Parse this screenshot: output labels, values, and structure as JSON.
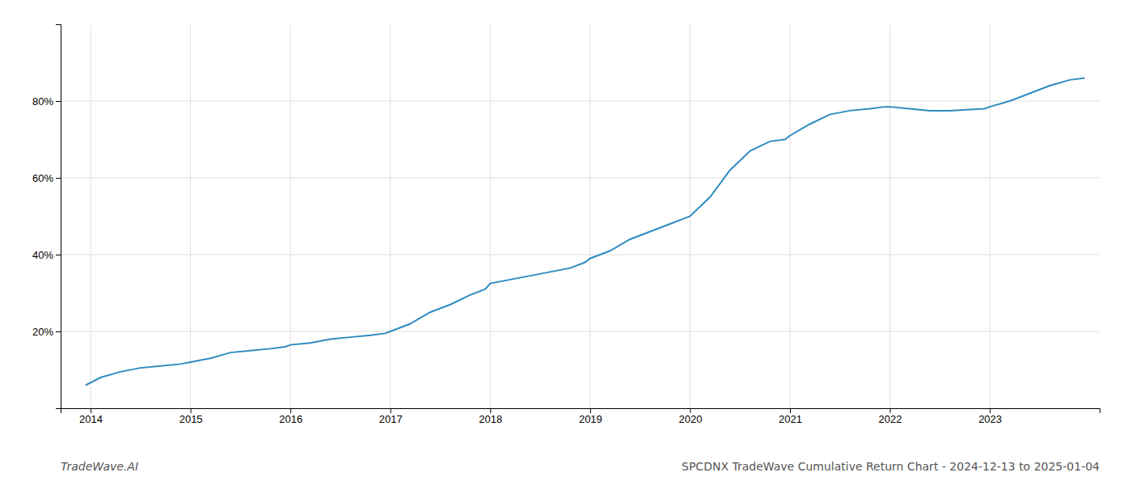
{
  "chart_data": {
    "type": "line",
    "title": "SPCDNX TradeWave Cumulative Return Chart - 2024-12-13 to 2025-01-04",
    "annotations": [
      "TradeWave.AI"
    ],
    "color": "#2e8bc0",
    "grid": true,
    "x": [
      2013.95,
      2014.1,
      2014.3,
      2014.5,
      2014.7,
      2014.9,
      2015.0,
      2015.2,
      2015.4,
      2015.6,
      2015.8,
      2015.95,
      2016.0,
      2016.2,
      2016.4,
      2016.6,
      2016.8,
      2016.95,
      2017.0,
      2017.2,
      2017.4,
      2017.6,
      2017.8,
      2017.95,
      2018.0,
      2018.2,
      2018.4,
      2018.6,
      2018.8,
      2018.95,
      2019.0,
      2019.2,
      2019.4,
      2019.6,
      2019.8,
      2019.95,
      2020.0,
      2020.2,
      2020.4,
      2020.6,
      2020.8,
      2020.95,
      2021.0,
      2021.2,
      2021.4,
      2021.6,
      2021.8,
      2021.95,
      2022.0,
      2022.2,
      2022.4,
      2022.6,
      2022.8,
      2022.95,
      2023.0,
      2023.2,
      2023.4,
      2023.6,
      2023.8,
      2023.95
    ],
    "values": [
      6.0,
      8.0,
      9.5,
      10.5,
      11.0,
      11.5,
      12.0,
      13.0,
      14.5,
      15.0,
      15.5,
      16.0,
      16.5,
      17.0,
      18.0,
      18.5,
      19.0,
      19.5,
      20.0,
      22.0,
      25.0,
      27.0,
      29.5,
      31.0,
      32.5,
      33.5,
      34.5,
      35.5,
      36.5,
      38.0,
      39.0,
      41.0,
      44.0,
      46.0,
      48.0,
      49.5,
      50.0,
      55.0,
      62.0,
      67.0,
      69.5,
      70.0,
      71.0,
      74.0,
      76.5,
      77.5,
      78.0,
      78.5,
      78.5,
      78.0,
      77.5,
      77.5,
      77.8,
      78.0,
      78.5,
      80.0,
      82.0,
      84.0,
      85.5,
      86.0
    ],
    "xlim": [
      2013.7,
      2024.1
    ],
    "xticks": [
      2014,
      2015,
      2016,
      2017,
      2018,
      2019,
      2020,
      2021,
      2022,
      2023
    ],
    "ylim": [
      0,
      100
    ],
    "yticks": [
      {
        "value": 20,
        "label": "20%"
      },
      {
        "value": 40,
        "label": "40%"
      },
      {
        "value": 60,
        "label": "60%"
      },
      {
        "value": 80,
        "label": "80%"
      }
    ]
  }
}
